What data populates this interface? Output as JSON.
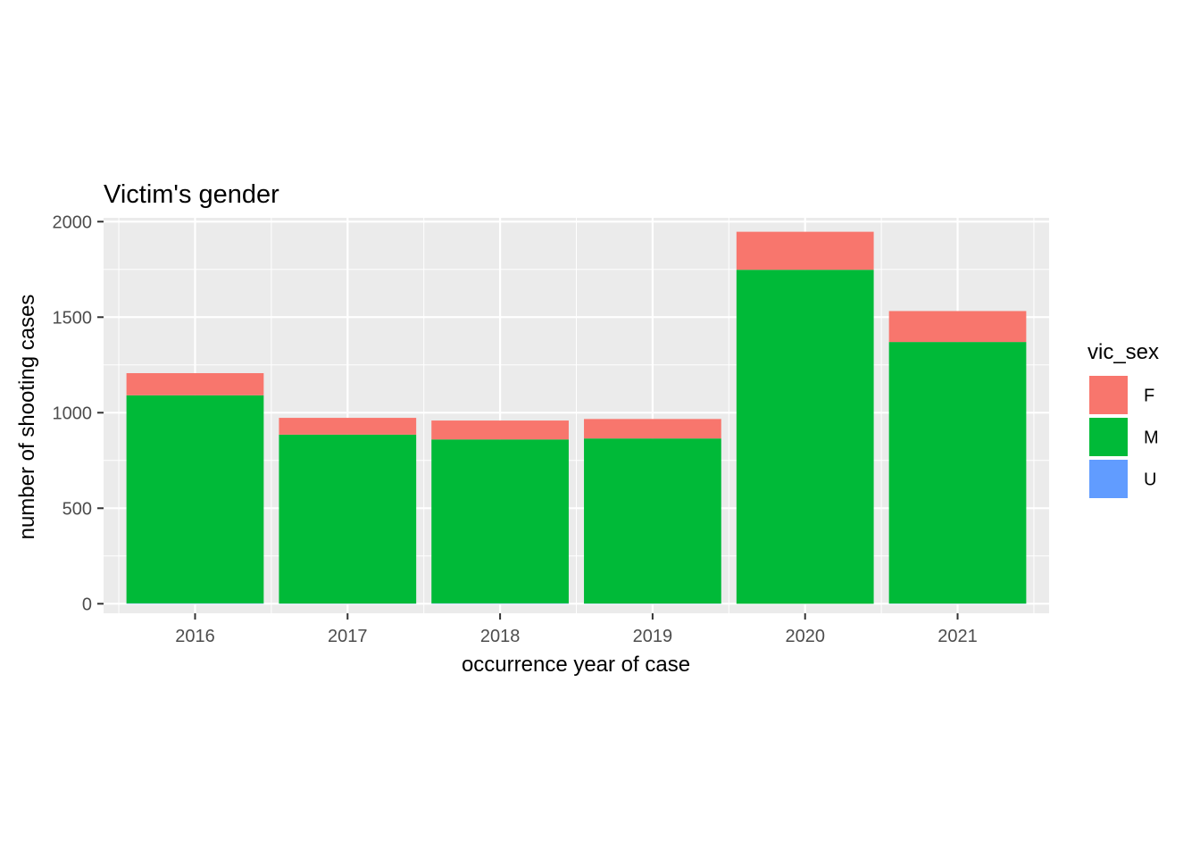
{
  "chart_data": {
    "type": "bar",
    "stacked": true,
    "title": "Victim's gender",
    "xlabel": "occurrence year of case",
    "ylabel": "number of shooting cases",
    "categories": [
      "2016",
      "2017",
      "2018",
      "2019",
      "2020",
      "2021"
    ],
    "series": [
      {
        "name": "U",
        "color": "#619CFF",
        "values": [
          2,
          1,
          2,
          1,
          0,
          1
        ]
      },
      {
        "name": "M",
        "color": "#00BA38",
        "values": [
          1089,
          884,
          858,
          864,
          1748,
          1369
        ]
      },
      {
        "name": "F",
        "color": "#F8766D",
        "values": [
          116,
          88,
          99,
          102,
          199,
          162
        ]
      }
    ],
    "ylim": [
      -50,
      2020
    ],
    "yticks": [
      0,
      500,
      1000,
      1500,
      2000
    ],
    "ytick_labels": [
      "0",
      "500",
      "1000",
      "1500",
      "2000"
    ],
    "grid": true,
    "legend": {
      "title": "vic_sex",
      "position": "right",
      "entries": [
        {
          "label": "F",
          "color": "#F8766D"
        },
        {
          "label": "M",
          "color": "#00BA38"
        },
        {
          "label": "U",
          "color": "#619CFF"
        }
      ]
    }
  }
}
